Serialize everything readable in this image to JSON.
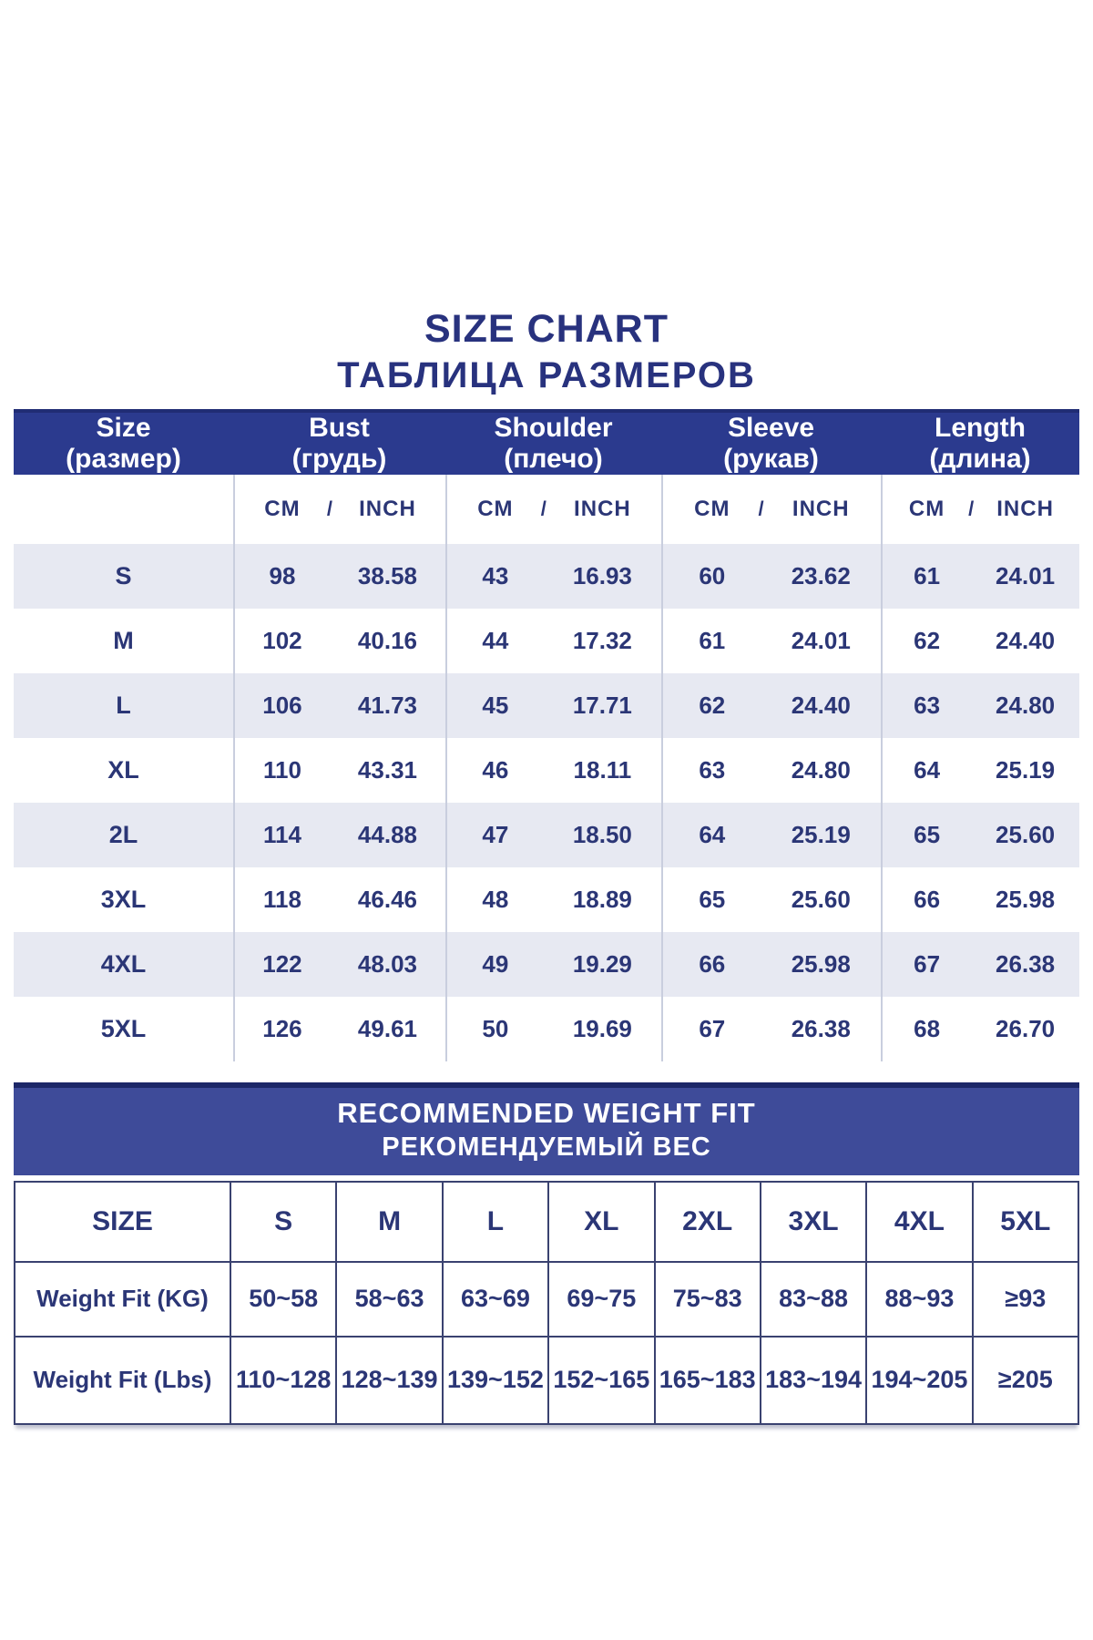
{
  "title": "SIZE CHART",
  "subtitle": "ТАБЛИЦА РАЗМЕРОВ",
  "colors": {
    "heading_text": "#28327e",
    "header_band": "#2b3a8e",
    "banner_body": "#3e4b99",
    "banner_top_border": "#1c2768",
    "row_stripe": "#e7e9f2",
    "cell_text": "#2b3676",
    "grid_line": "#c9cede",
    "weight_table_border": "#3a4270"
  },
  "size_table": {
    "columns": [
      {
        "en": "Size",
        "ru": "(размер)"
      },
      {
        "en": "Bust",
        "ru": "(грудь)"
      },
      {
        "en": "Shoulder",
        "ru": "(плечо)"
      },
      {
        "en": "Sleeve",
        "ru": "(рукав)"
      },
      {
        "en": "Length",
        "ru": "(длина)"
      }
    ],
    "unit_labels": {
      "cm": "CM",
      "divider": "/",
      "inch": "INCH"
    },
    "rows": [
      {
        "size": "S",
        "values": [
          "98",
          "38.58",
          "43",
          "16.93",
          "60",
          "23.62",
          "61",
          "24.01"
        ]
      },
      {
        "size": "M",
        "values": [
          "102",
          "40.16",
          "44",
          "17.32",
          "61",
          "24.01",
          "62",
          "24.40"
        ]
      },
      {
        "size": "L",
        "values": [
          "106",
          "41.73",
          "45",
          "17.71",
          "62",
          "24.40",
          "63",
          "24.80"
        ]
      },
      {
        "size": "XL",
        "values": [
          "110",
          "43.31",
          "46",
          "18.11",
          "63",
          "24.80",
          "64",
          "25.19"
        ]
      },
      {
        "size": "2L",
        "values": [
          "114",
          "44.88",
          "47",
          "18.50",
          "64",
          "25.19",
          "65",
          "25.60"
        ]
      },
      {
        "size": "3XL",
        "values": [
          "118",
          "46.46",
          "48",
          "18.89",
          "65",
          "25.60",
          "66",
          "25.98"
        ]
      },
      {
        "size": "4XL",
        "values": [
          "122",
          "48.03",
          "49",
          "19.29",
          "66",
          "25.98",
          "67",
          "26.38"
        ]
      },
      {
        "size": "5XL",
        "values": [
          "126",
          "49.61",
          "50",
          "19.69",
          "67",
          "26.38",
          "68",
          "26.70"
        ]
      }
    ]
  },
  "weight_banner": {
    "line1": "RECOMMENDED WEIGHT FIT",
    "line2": "РЕКОМЕНДУЕМЫЙ ВЕС"
  },
  "weight_table": {
    "header": [
      "SIZE",
      "S",
      "M",
      "L",
      "XL",
      "2XL",
      "3XL",
      "4XL",
      "5XL"
    ],
    "rows": [
      {
        "label": "Weight Fit (KG)",
        "values": [
          "50~58",
          "58~63",
          "63~69",
          "69~75",
          "75~83",
          "83~88",
          "88~93",
          "≥93"
        ]
      },
      {
        "label": "Weight Fit (Lbs)",
        "values": [
          "110~128",
          "128~139",
          "139~152",
          "152~165",
          "165~183",
          "183~194",
          "194~205",
          "≥205"
        ]
      }
    ]
  },
  "chart_data": [
    {
      "type": "table",
      "title": "SIZE CHART / ТАБЛИЦА РАЗМЕРОВ",
      "columns": [
        "Size",
        "Bust CM",
        "Bust INCH",
        "Shoulder CM",
        "Shoulder INCH",
        "Sleeve CM",
        "Sleeve INCH",
        "Length CM",
        "Length INCH"
      ],
      "rows": [
        [
          "S",
          98,
          38.58,
          43,
          16.93,
          60,
          23.62,
          61,
          24.01
        ],
        [
          "M",
          102,
          40.16,
          44,
          17.32,
          61,
          24.01,
          62,
          24.4
        ],
        [
          "L",
          106,
          41.73,
          45,
          17.71,
          62,
          24.4,
          63,
          24.8
        ],
        [
          "XL",
          110,
          43.31,
          46,
          18.11,
          63,
          24.8,
          64,
          25.19
        ],
        [
          "2L",
          114,
          44.88,
          47,
          18.5,
          64,
          25.19,
          65,
          25.6
        ],
        [
          "3XL",
          118,
          46.46,
          48,
          18.89,
          65,
          25.6,
          66,
          25.98
        ],
        [
          "4XL",
          122,
          48.03,
          49,
          19.29,
          66,
          25.98,
          67,
          26.38
        ],
        [
          "5XL",
          126,
          49.61,
          50,
          19.69,
          67,
          26.38,
          68,
          26.7
        ]
      ]
    },
    {
      "type": "table",
      "title": "RECOMMENDED WEIGHT FIT / РЕКОМЕНДУЕМЫЙ ВЕС",
      "columns": [
        "SIZE",
        "S",
        "M",
        "L",
        "XL",
        "2XL",
        "3XL",
        "4XL",
        "5XL"
      ],
      "rows": [
        [
          "Weight Fit (KG)",
          "50~58",
          "58~63",
          "63~69",
          "69~75",
          "75~83",
          "83~88",
          "88~93",
          "≥93"
        ],
        [
          "Weight Fit (Lbs)",
          "110~128",
          "128~139",
          "139~152",
          "152~165",
          "165~183",
          "183~194",
          "194~205",
          "≥205"
        ]
      ]
    }
  ]
}
